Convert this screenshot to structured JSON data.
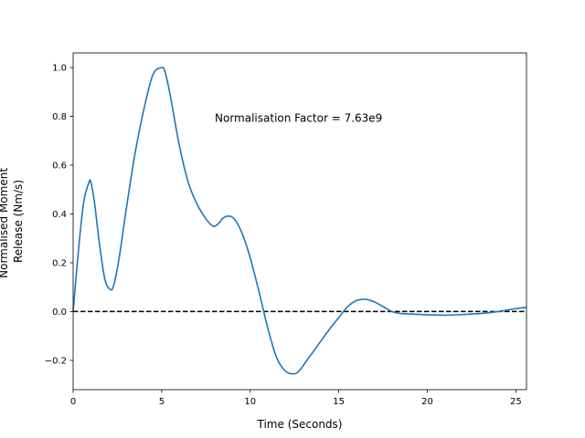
{
  "chart_data": {
    "type": "line",
    "title": "",
    "xlabel": "Time (Seconds)",
    "ylabel_lines": [
      "Normalised Moment",
      "Release (Nm/s)"
    ],
    "xlim": [
      0,
      25.6
    ],
    "ylim": [
      -0.32,
      1.06
    ],
    "xticks": [
      0,
      5,
      10,
      15,
      20,
      25
    ],
    "yticks": [
      -0.2,
      0.0,
      0.2,
      0.4,
      0.6,
      0.8,
      1.0
    ],
    "ytick_labels": [
      "−0.2",
      "0.0",
      "0.2",
      "0.4",
      "0.6",
      "0.8",
      "1.0"
    ],
    "grid": false,
    "annotation": {
      "text": "Normalisation Factor = 7.63e9",
      "x": 8.0,
      "y": 0.8
    },
    "reference_line": {
      "y": 0.0,
      "style": "dashed",
      "color": "#000000"
    },
    "series": [
      {
        "color": "#1f77b4",
        "x": [
          0,
          0.3,
          0.6,
          0.9,
          1.0,
          1.2,
          1.5,
          1.8,
          2.1,
          2.3,
          2.6,
          3.0,
          3.5,
          4.0,
          4.5,
          5.0,
          5.2,
          5.5,
          6.0,
          6.5,
          7.0,
          7.5,
          7.9,
          8.2,
          8.5,
          8.9,
          9.2,
          9.6,
          10.0,
          10.5,
          11.0,
          11.5,
          12.0,
          12.5,
          12.8,
          13.2,
          13.8,
          14.5,
          15.0,
          15.5,
          16.0,
          16.5,
          17.0,
          17.5,
          18.0,
          18.5,
          19.0,
          20.0,
          21.0,
          22.0,
          23.0,
          24.0,
          25.0,
          25.6
        ],
        "y": [
          0.0,
          0.25,
          0.45,
          0.53,
          0.53,
          0.45,
          0.27,
          0.13,
          0.09,
          0.11,
          0.22,
          0.42,
          0.65,
          0.83,
          0.97,
          1.0,
          0.98,
          0.88,
          0.68,
          0.53,
          0.44,
          0.38,
          0.35,
          0.36,
          0.385,
          0.39,
          0.37,
          0.31,
          0.22,
          0.08,
          -0.07,
          -0.19,
          -0.245,
          -0.255,
          -0.24,
          -0.2,
          -0.14,
          -0.07,
          -0.025,
          0.02,
          0.045,
          0.05,
          0.04,
          0.02,
          0.0,
          -0.008,
          -0.01,
          -0.013,
          -0.015,
          -0.012,
          -0.008,
          0.0,
          0.012,
          0.017
        ]
      }
    ]
  }
}
